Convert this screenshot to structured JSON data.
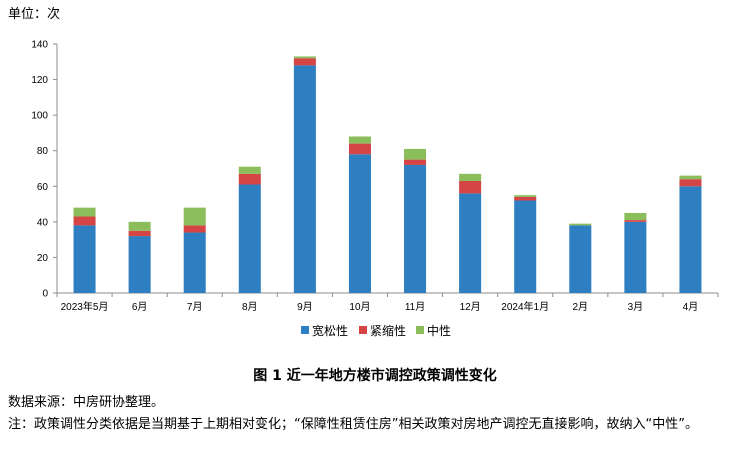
{
  "unit_label": "单位：次",
  "figure_caption": "图 1 近一年地方楼市调控政策调性变化",
  "source_note": "数据来源：中房研协整理。",
  "footnote": "注：政策调性分类依据是当期基于上期相对变化；“保障性租赁住房”相关政策对房地产调控无直接影响，故纳入“中性”。",
  "chart_data": {
    "type": "bar",
    "stacked": true,
    "categories": [
      "2023年5月",
      "6月",
      "7月",
      "8月",
      "9月",
      "10月",
      "11月",
      "12月",
      "2024年1月",
      "2月",
      "3月",
      "4月"
    ],
    "series": [
      {
        "name": "宽松性",
        "color": "#2e7fc1",
        "values": [
          38,
          32,
          34,
          61,
          128,
          78,
          72,
          56,
          52,
          38,
          40,
          60
        ]
      },
      {
        "name": "紧缩性",
        "color": "#d64545",
        "values": [
          5,
          3,
          4,
          6,
          4,
          6,
          3,
          7,
          2,
          0,
          1,
          4
        ]
      },
      {
        "name": "中性",
        "color": "#8bbd5a",
        "values": [
          5,
          5,
          10,
          4,
          1,
          4,
          6,
          4,
          1,
          1,
          4,
          2
        ]
      }
    ],
    "yticks": [
      0,
      20,
      40,
      60,
      80,
      100,
      120,
      140
    ],
    "ylim": [
      0,
      140
    ],
    "grid": false,
    "legend_position": "bottom"
  }
}
